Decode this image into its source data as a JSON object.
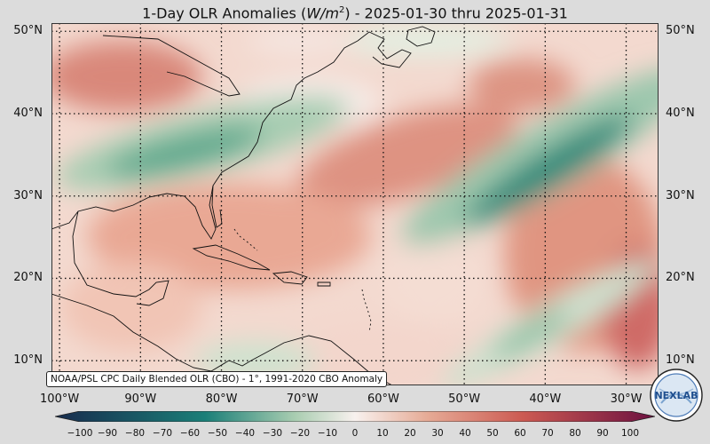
{
  "title": {
    "prefix": "1-Day OLR Anomalies (",
    "unit_base": "W/m",
    "unit_exp": "2",
    "suffix": ") - 2025-01-30 thru 2025-01-31"
  },
  "map": {
    "lat_range": [
      7,
      51
    ],
    "lon_range": [
      -101,
      -26
    ],
    "lat_labels": [
      "50°N",
      "40°N",
      "30°N",
      "20°N",
      "10°N"
    ],
    "lon_labels": [
      "100°W",
      "90°W",
      "80°W",
      "70°W",
      "60°W",
      "50°W",
      "40°W",
      "30°W"
    ],
    "gridlines": "dotted"
  },
  "credit": "NOAA/PSL CPC Daily Blended OLR (CBO) - 1°, 1991-2020 CBO Anomaly",
  "colorbar": {
    "min": -100,
    "max": 100,
    "tick_labels": [
      "−100",
      "−90",
      "−80",
      "−70",
      "−60",
      "−50",
      "−40",
      "−30",
      "−20",
      "−10",
      "0",
      "10",
      "20",
      "30",
      "40",
      "50",
      "60",
      "70",
      "80",
      "90",
      "100"
    ],
    "colors": {
      "neg_strong": "#172b4d",
      "neg_mid": "#1b7f78",
      "neg_light": "#a9cdb1",
      "zero": "#f8f1ee",
      "pos_light": "#e6ab96",
      "pos_mid": "#cc5a52",
      "pos_strong": "#6c1140"
    }
  },
  "logo": {
    "text": "NEXLAB",
    "icon": "nexlab-logo-icon"
  }
}
